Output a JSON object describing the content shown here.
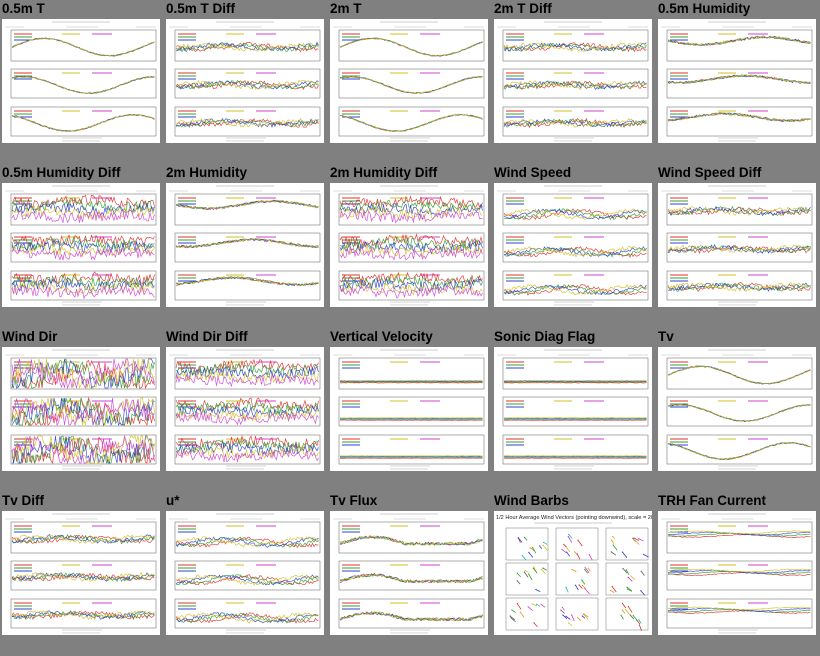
{
  "grid": {
    "cells": [
      {
        "title": "0.5m T",
        "style": "temp",
        "seed": 1
      },
      {
        "title": "0.5m T Diff",
        "style": "diff",
        "seed": 2
      },
      {
        "title": "2m T",
        "style": "temp",
        "seed": 3
      },
      {
        "title": "2m T Diff",
        "style": "diff",
        "seed": 4
      },
      {
        "title": "0.5m Humidity",
        "style": "humid",
        "seed": 5
      },
      {
        "title": "0.5m Humidity Diff",
        "style": "noisy",
        "seed": 6
      },
      {
        "title": "2m Humidity",
        "style": "humid",
        "seed": 7
      },
      {
        "title": "2m Humidity Diff",
        "style": "noisy",
        "seed": 8
      },
      {
        "title": "Wind Speed",
        "style": "wind",
        "seed": 9
      },
      {
        "title": "Wind Speed Diff",
        "style": "diff",
        "seed": 10
      },
      {
        "title": "Wind Dir",
        "style": "dir",
        "seed": 11
      },
      {
        "title": "Wind Dir Diff",
        "style": "noisy",
        "seed": 12
      },
      {
        "title": "Vertical Velocity",
        "style": "flat",
        "seed": 13
      },
      {
        "title": "Sonic Diag Flag",
        "style": "flat",
        "seed": 14
      },
      {
        "title": "Tv",
        "style": "temp",
        "seed": 15
      },
      {
        "title": "Tv Diff",
        "style": "diff",
        "seed": 16
      },
      {
        "title": "u*",
        "style": "wind",
        "seed": 17
      },
      {
        "title": "Tv Flux",
        "style": "flux",
        "seed": 18
      },
      {
        "title": "Wind Barbs",
        "style": "barbs",
        "seed": 19
      },
      {
        "title": "TRH Fan Current",
        "style": "fan",
        "seed": 20
      }
    ]
  },
  "wind_barbs": {
    "heading": "1/2 Hour Average Wind Vectors (pointing downwind), scale = 20"
  },
  "colors": {
    "background": "#808080",
    "panel": "#ffffff",
    "series": [
      "#e03030",
      "#30a030",
      "#3040d0",
      "#d0c020",
      "#d040d0",
      "#20b0c0",
      "#f09020",
      "#606060"
    ]
  }
}
